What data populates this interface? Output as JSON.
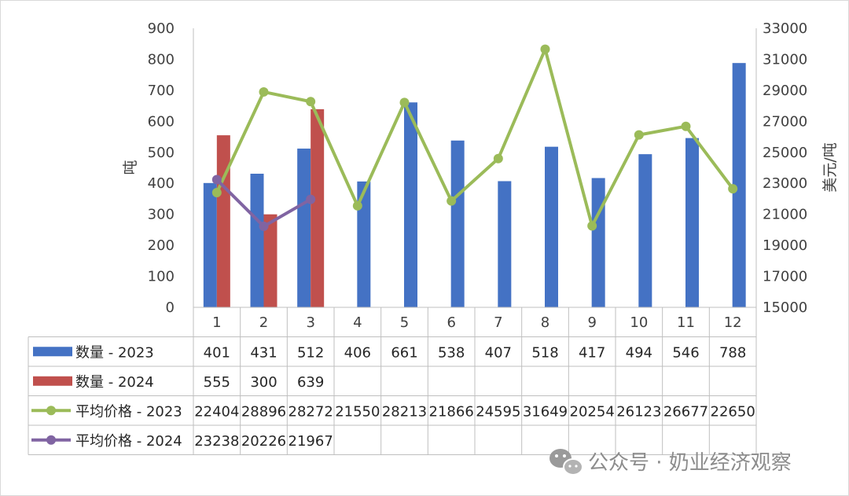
{
  "chart_data": {
    "type": "bar",
    "categories": [
      "1",
      "2",
      "3",
      "4",
      "5",
      "6",
      "7",
      "8",
      "9",
      "10",
      "11",
      "12"
    ],
    "y_left": {
      "label": "吨",
      "ylim": [
        0,
        900
      ],
      "ticks": [
        "0",
        "100",
        "200",
        "300",
        "400",
        "500",
        "600",
        "700",
        "800",
        "900"
      ]
    },
    "y_right": {
      "label": "美元/吨",
      "ylim": [
        15000,
        33000
      ],
      "ticks": [
        "15000",
        "17000",
        "19000",
        "21000",
        "23000",
        "25000",
        "27000",
        "29000",
        "31000",
        "33000"
      ]
    },
    "series": [
      {
        "name": "数量 - 2023",
        "kind": "bar",
        "axis": "left",
        "color": "#4472C4",
        "values": [
          401,
          431,
          512,
          406,
          661,
          538,
          407,
          518,
          417,
          494,
          546,
          788
        ]
      },
      {
        "name": "数量 - 2024",
        "kind": "bar",
        "axis": "left",
        "color": "#C0504D",
        "values": [
          555,
          300,
          639,
          null,
          null,
          null,
          null,
          null,
          null,
          null,
          null,
          null
        ]
      },
      {
        "name": "平均价格 - 2023",
        "kind": "line",
        "axis": "right",
        "color": "#9BBB59",
        "values": [
          22404,
          28896,
          28272,
          21550,
          28213,
          21866,
          24595,
          31649,
          20254,
          26123,
          26677,
          22650
        ]
      },
      {
        "name": "平均价格 - 2024",
        "kind": "line",
        "axis": "right",
        "color": "#8064A2",
        "values": [
          23238,
          20226,
          21967,
          null,
          null,
          null,
          null,
          null,
          null,
          null,
          null,
          null
        ]
      }
    ],
    "grid": false,
    "legend": "data-table"
  },
  "watermark": {
    "icon": "wechat-icon",
    "text": "公众号 · 奶业经济观察"
  }
}
